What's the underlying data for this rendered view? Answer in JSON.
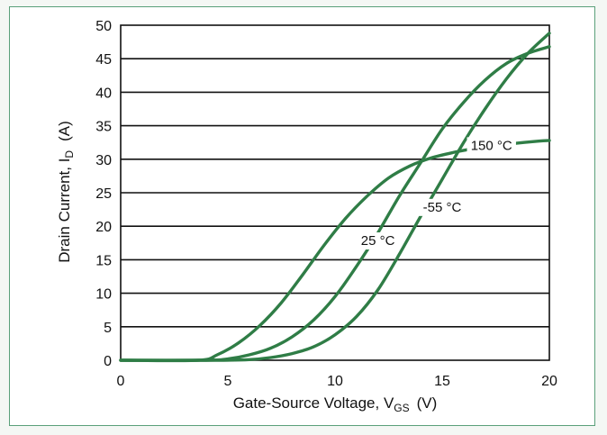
{
  "chart_data": {
    "type": "line",
    "title": "",
    "xlabel": {
      "main": "Gate-Source Voltage, V",
      "sub": "GS",
      "unit": "(V)"
    },
    "ylabel": {
      "main": "Drain Current, I",
      "sub": "D",
      "unit": "(A)"
    },
    "xlim": [
      0,
      20
    ],
    "ylim": [
      0,
      50
    ],
    "xticks": [
      "0",
      "5",
      "10",
      "15",
      "20"
    ],
    "yticks": [
      "0",
      "5",
      "10",
      "15",
      "20",
      "25",
      "30",
      "35",
      "40",
      "45",
      "50"
    ],
    "grid": "horizontal",
    "line_color": "#2f7d46",
    "series": [
      {
        "name": "150 °C",
        "x": [
          0,
          3.6,
          4.5,
          5.5,
          6.5,
          7.5,
          8.5,
          9.5,
          10.5,
          11.5,
          12.5,
          13.5,
          14.5,
          15.5,
          16.5,
          17.5,
          18.5,
          19.5,
          20
        ],
        "y": [
          0,
          0,
          0.8,
          2.6,
          5.2,
          8.6,
          12.8,
          17.2,
          21.2,
          24.5,
          27.2,
          29.0,
          30.2,
          31.0,
          31.6,
          32.0,
          32.4,
          32.7,
          32.8
        ]
      },
      {
        "name": "25 °C",
        "x": [
          0,
          4.0,
          5.0,
          6.0,
          7.0,
          8.0,
          9.0,
          10.0,
          11.0,
          12.0,
          13.0,
          14.0,
          15.0,
          16.0,
          17.0,
          18.0,
          19.0,
          20
        ],
        "y": [
          0,
          0,
          0.2,
          0.8,
          1.8,
          3.5,
          6.0,
          9.5,
          14.0,
          19.0,
          24.5,
          29.5,
          34.5,
          38.5,
          41.8,
          44.3,
          45.8,
          46.8
        ]
      },
      {
        "name": "-55 °C",
        "x": [
          0,
          4.5,
          6.0,
          7.0,
          8.0,
          9.0,
          10.0,
          11.0,
          12.0,
          13.0,
          14.0,
          15.0,
          16.0,
          17.0,
          18.0,
          19.0,
          20
        ],
        "y": [
          0,
          0,
          0.1,
          0.4,
          1.0,
          2.0,
          3.8,
          6.5,
          10.5,
          15.8,
          21.5,
          27.0,
          32.5,
          37.5,
          42.0,
          45.8,
          48.8
        ]
      }
    ],
    "annotations": [
      {
        "text": "150 °C",
        "series": "150 °C"
      },
      {
        "text": "25 °C",
        "series": "25 °C"
      },
      {
        "text": "-55 °C",
        "series": "-55 °C"
      }
    ]
  }
}
